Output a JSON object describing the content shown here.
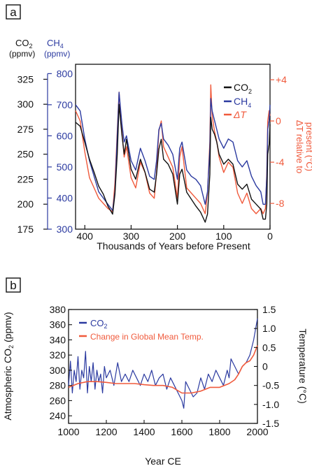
{
  "chart_data": [
    {
      "panel": "a",
      "type": "line",
      "xlabel": "Thousands of Years before Present",
      "xlim": [
        420,
        0
      ],
      "x_ticks": [
        400,
        300,
        200,
        100,
        0
      ],
      "axes": {
        "co2": {
          "label_line1": "CO2",
          "label_line2": "(ppmv)",
          "ylim": [
            175,
            340
          ],
          "ticks": [
            175,
            200,
            225,
            250,
            275,
            300,
            325
          ],
          "color": "#111111"
        },
        "ch4": {
          "label_line1": "CH4",
          "label_line2": "(ppmv)",
          "ylim": [
            300,
            830
          ],
          "ticks": [
            300,
            400,
            500,
            600,
            700,
            800
          ],
          "color": "#2b3aa0"
        },
        "dt": {
          "label_line1": "ΔT relative to",
          "label_line2": "present (°C)",
          "ylim": [
            -10.5,
            5.5
          ],
          "ticks": [
            4,
            0,
            -4,
            -8
          ],
          "tick_labels": [
            "+4",
            "0",
            "-4",
            "-8"
          ],
          "color": "#f05a3c"
        }
      },
      "legend": [
        "CO2",
        "CH4",
        "ΔT"
      ],
      "legend_position": "top-right",
      "series": [
        {
          "name": "CO2",
          "color": "#111111",
          "x": [
            420,
            410,
            400,
            390,
            380,
            370,
            360,
            350,
            340,
            335,
            330,
            326,
            320,
            315,
            310,
            300,
            290,
            280,
            270,
            260,
            250,
            245,
            240,
            235,
            230,
            220,
            210,
            200,
            195,
            190,
            180,
            170,
            160,
            150,
            140,
            135,
            130,
            128,
            125,
            120,
            115,
            110,
            100,
            90,
            80,
            70,
            60,
            50,
            40,
            30,
            20,
            15,
            10,
            7,
            5,
            2,
            0
          ],
          "y": [
            282,
            278,
            262,
            245,
            232,
            218,
            210,
            198,
            190,
            210,
            250,
            300,
            270,
            250,
            265,
            235,
            225,
            245,
            232,
            215,
            212,
            230,
            255,
            265,
            245,
            240,
            230,
            200,
            230,
            235,
            212,
            205,
            198,
            192,
            182,
            190,
            230,
            287,
            275,
            270,
            262,
            250,
            240,
            245,
            240,
            220,
            215,
            220,
            205,
            200,
            195,
            185,
            185,
            200,
            250,
            260,
            280
          ]
        },
        {
          "name": "CH4",
          "color": "#2b3aa0",
          "x": [
            420,
            410,
            400,
            390,
            380,
            370,
            360,
            350,
            340,
            335,
            330,
            326,
            320,
            315,
            310,
            300,
            290,
            280,
            270,
            260,
            250,
            245,
            240,
            235,
            230,
            220,
            210,
            200,
            195,
            190,
            180,
            170,
            160,
            150,
            140,
            135,
            130,
            128,
            125,
            120,
            115,
            110,
            100,
            90,
            80,
            70,
            60,
            50,
            40,
            30,
            20,
            15,
            10,
            7,
            5,
            2,
            0
          ],
          "y": [
            700,
            680,
            590,
            520,
            470,
            420,
            400,
            380,
            360,
            420,
            600,
            740,
            640,
            580,
            600,
            520,
            490,
            560,
            520,
            470,
            460,
            520,
            620,
            640,
            590,
            570,
            540,
            460,
            560,
            580,
            490,
            470,
            460,
            440,
            380,
            420,
            560,
            720,
            680,
            650,
            620,
            590,
            560,
            590,
            580,
            520,
            500,
            520,
            470,
            440,
            420,
            380,
            380,
            470,
            620,
            650,
            700
          ]
        },
        {
          "name": "ΔT",
          "color": "#f05a3c",
          "x": [
            420,
            410,
            400,
            390,
            380,
            370,
            360,
            350,
            340,
            335,
            330,
            326,
            320,
            315,
            310,
            300,
            290,
            280,
            270,
            260,
            250,
            245,
            240,
            235,
            230,
            220,
            210,
            200,
            195,
            190,
            180,
            170,
            160,
            150,
            140,
            135,
            130,
            128,
            125,
            120,
            115,
            110,
            100,
            90,
            80,
            70,
            60,
            50,
            40,
            30,
            20,
            15,
            10,
            7,
            5,
            2,
            0
          ],
          "y": [
            1,
            0,
            -3,
            -5.5,
            -6.5,
            -7.5,
            -8,
            -8.5,
            -8.8,
            -6,
            -1,
            2.8,
            -1,
            -3.5,
            -2.5,
            -5.5,
            -6.5,
            -4,
            -5,
            -7,
            -7.5,
            -5,
            -1,
            0,
            -2.5,
            -3.5,
            -4.5,
            -7.5,
            -3.5,
            -2.5,
            -6.5,
            -7,
            -7.5,
            -8,
            -9,
            -7,
            -2,
            3.5,
            0.5,
            -1,
            -2,
            -3.5,
            -5,
            -4,
            -4.5,
            -7,
            -8,
            -7,
            -8.5,
            -9,
            -8.5,
            -9,
            -8.5,
            -5,
            0,
            1,
            0.5
          ]
        }
      ]
    },
    {
      "panel": "b",
      "type": "line",
      "xlabel": "Year CE",
      "xlim": [
        1000,
        2000
      ],
      "x_ticks": [
        1000,
        1200,
        1400,
        1600,
        1800,
        2000
      ],
      "ylabel_left": "Atmospheric CO2 (ppmv)",
      "ylim_left": [
        230,
        380
      ],
      "ticks_left": [
        240,
        260,
        280,
        300,
        320,
        340,
        360,
        380
      ],
      "ylabel_right": "Temperature (°C)",
      "ylim_right": [
        -1.5,
        1.5
      ],
      "ticks_right": [
        -1.5,
        -1.0,
        -0.5,
        0,
        0.5,
        1.0,
        1.5
      ],
      "legend_position": "top-left",
      "series": [
        {
          "name": "CO2",
          "axis": "left",
          "color": "#2b3aa0",
          "x": [
            1000,
            1010,
            1020,
            1030,
            1040,
            1050,
            1060,
            1070,
            1080,
            1090,
            1100,
            1110,
            1120,
            1130,
            1140,
            1150,
            1160,
            1170,
            1180,
            1190,
            1200,
            1220,
            1240,
            1260,
            1280,
            1300,
            1320,
            1340,
            1360,
            1380,
            1400,
            1420,
            1440,
            1460,
            1480,
            1500,
            1520,
            1540,
            1560,
            1580,
            1600,
            1610,
            1620,
            1640,
            1660,
            1680,
            1700,
            1720,
            1740,
            1760,
            1780,
            1800,
            1820,
            1840,
            1850,
            1860,
            1880,
            1900,
            1920,
            1940,
            1960,
            1980,
            2000
          ],
          "y": [
            280,
            312,
            270,
            300,
            285,
            318,
            275,
            300,
            290,
            325,
            270,
            305,
            285,
            310,
            275,
            300,
            285,
            295,
            270,
            305,
            290,
            300,
            280,
            310,
            285,
            295,
            285,
            300,
            290,
            280,
            295,
            285,
            300,
            280,
            290,
            295,
            275,
            290,
            280,
            270,
            260,
            250,
            285,
            275,
            265,
            270,
            290,
            275,
            295,
            285,
            300,
            290,
            280,
            300,
            290,
            315,
            305,
            295,
            305,
            310,
            320,
            340,
            368
          ]
        },
        {
          "name": "Change in Global Mean Temp.",
          "axis": "right",
          "color": "#f05a3c",
          "x": [
            1000,
            1050,
            1100,
            1150,
            1200,
            1250,
            1300,
            1350,
            1400,
            1450,
            1500,
            1550,
            1600,
            1650,
            1700,
            1750,
            1800,
            1850,
            1880,
            1900,
            1920,
            1940,
            1960,
            1980,
            2000
          ],
          "y": [
            -0.55,
            -0.45,
            -0.4,
            -0.4,
            -0.42,
            -0.45,
            -0.45,
            -0.45,
            -0.48,
            -0.5,
            -0.5,
            -0.55,
            -0.7,
            -0.7,
            -0.65,
            -0.55,
            -0.55,
            -0.45,
            -0.35,
            -0.2,
            0.0,
            0.1,
            0.15,
            0.3,
            0.55
          ]
        }
      ]
    }
  ],
  "labels": {
    "panel_a": "a",
    "panel_b": "b",
    "a_legend_co2": "CO",
    "a_legend_co2_sub": "2",
    "a_legend_ch4": "CH",
    "a_legend_ch4_sub": "4",
    "a_legend_dt": "ΔT",
    "a_co2_label": "CO",
    "a_co2_label_sub": "2",
    "a_ch4_label": "CH",
    "a_ch4_label_sub": "4",
    "a_ppmv_left": "(ppmv)",
    "a_ppmv_right": "(ppmv)",
    "a_right_line1": "ΔT relative to",
    "a_right_line2": "present (°C)",
    "b_legend_co2": "CO",
    "b_legend_co2_sub": "2",
    "b_legend_temp": "Change in Global Mean Temp.",
    "b_ylabel_left": "Atmospheric CO",
    "b_ylabel_left_sub": "2",
    "b_ylabel_left_rest": " (ppmv)",
    "b_ylabel_right": "Temperature (°C)"
  },
  "colors": {
    "co2": "#111111",
    "ch4": "#2b3aa0",
    "dt": "#f05a3c",
    "co2_b": "#2b3aa0",
    "temp_b": "#f05a3c"
  }
}
